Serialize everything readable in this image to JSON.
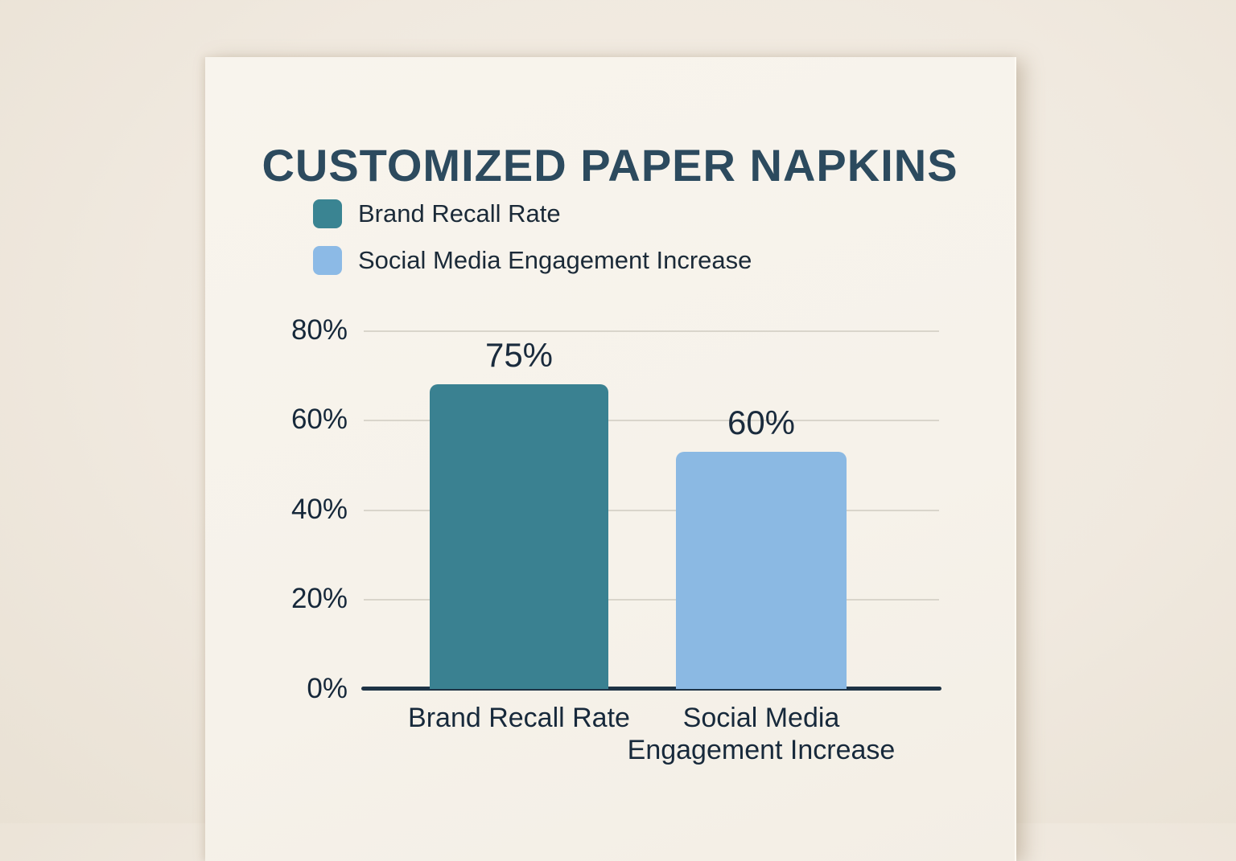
{
  "poster": {
    "title": "CUSTOMIZED PAPER NAPKINS"
  },
  "legend": {
    "items": [
      {
        "label": "Brand Recall Rate",
        "color": "#3a8492"
      },
      {
        "label": "Social Media Engagement Increase",
        "color": "#8cbae6"
      }
    ]
  },
  "chart_data": {
    "type": "bar",
    "title": "CUSTOMIZED PAPER NAPKINS",
    "categories": [
      "Brand Recall Rate",
      "Social Media Engagement Increase"
    ],
    "values": [
      75,
      60
    ],
    "data_labels": [
      "75%",
      "60%"
    ],
    "series_colors": [
      "#3a8191",
      "#8bb9e3"
    ],
    "xlabel": "",
    "ylabel": "",
    "ylim": [
      0,
      80
    ],
    "yticks": [
      "80%",
      "60%",
      "40%",
      "20%",
      "0%"
    ],
    "grid": true,
    "legend_position": "top-left",
    "rendered_bar_heights_pct": [
      68,
      53
    ],
    "x_tick_lines": [
      [
        "Brand Recall Rate"
      ],
      [
        "Social Media",
        "Engagement Increase"
      ]
    ]
  },
  "colors": {
    "wall": "#f0e9df",
    "paper": "#f6f2ea",
    "title_text": "#2c4a5e",
    "body_text": "#17293a",
    "gridline": "#d9d5cb",
    "axis_line": "#1e3345"
  }
}
